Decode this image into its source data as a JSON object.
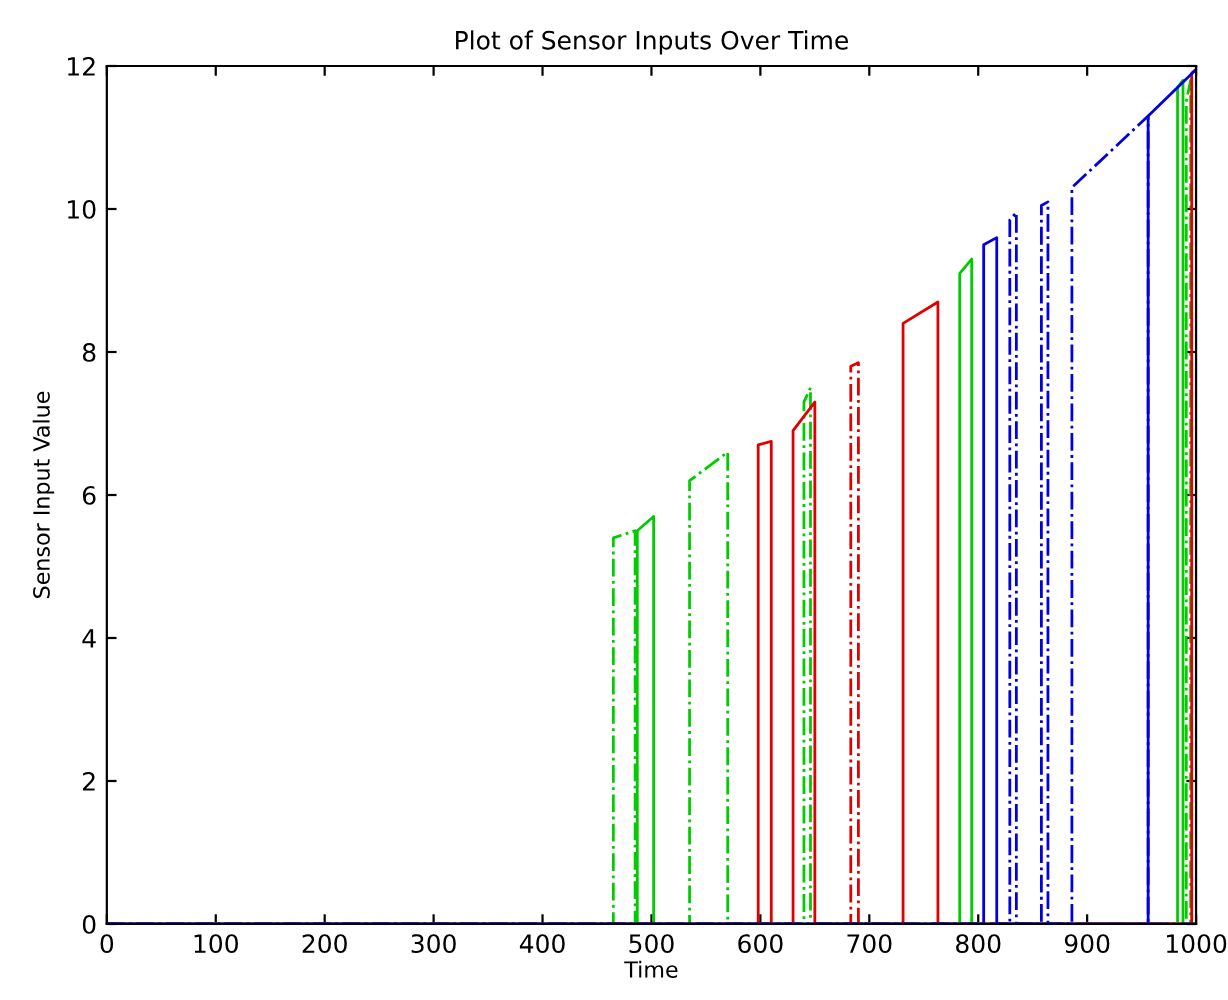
{
  "chart_data": {
    "type": "line",
    "title": "Plot of Sensor Inputs Over Time",
    "xlabel": "Time",
    "ylabel": "Sensor Input Value",
    "xlim": [
      0,
      1000
    ],
    "ylim": [
      0,
      12
    ],
    "xticks": [
      0,
      100,
      200,
      300,
      400,
      500,
      600,
      700,
      800,
      900,
      1000
    ],
    "yticks": [
      0,
      2,
      4,
      6,
      8,
      10,
      12
    ],
    "marker": "none",
    "series": [
      {
        "color": "#00cc00",
        "line_style": "dashdot",
        "x": [
          0,
          465,
          465,
          485,
          485,
          535,
          535,
          570,
          570,
          640,
          640,
          646,
          646,
          991,
          991,
          995,
          995,
          1000
        ],
        "values": [
          0,
          0,
          5.4,
          5.5,
          0,
          0,
          6.2,
          6.6,
          0,
          0,
          7.3,
          7.5,
          0,
          0,
          11.5,
          11.8,
          0,
          0
        ]
      },
      {
        "color": "#00cc00",
        "line_style": "solid",
        "x": [
          0,
          487,
          487,
          502,
          502,
          783,
          783,
          794,
          794,
          983,
          983,
          988,
          988,
          1000
        ],
        "values": [
          0,
          0,
          5.5,
          5.7,
          0,
          0,
          9.1,
          9.3,
          0,
          0,
          11.7,
          11.8,
          0,
          0
        ]
      },
      {
        "color": "#e00000",
        "line_style": "solid",
        "x": [
          0,
          598,
          598,
          610,
          610,
          630,
          630,
          650,
          650,
          731,
          731,
          763,
          763,
          996,
          996,
          1000
        ],
        "values": [
          0,
          0,
          6.7,
          6.75,
          0,
          0,
          6.9,
          7.3,
          0,
          0,
          8.4,
          8.7,
          0,
          0,
          11.9,
          11.95
        ]
      },
      {
        "color": "#e00000",
        "line_style": "dashdot",
        "x": [
          0,
          683,
          683,
          690,
          690,
          1000
        ],
        "values": [
          0,
          0,
          7.8,
          7.85,
          0,
          0
        ]
      },
      {
        "color": "#0000e0",
        "line_style": "solid",
        "x": [
          0,
          805,
          805,
          817,
          817,
          956,
          956,
          1000
        ],
        "values": [
          0,
          0,
          9.5,
          9.6,
          0,
          0,
          11.3,
          11.95
        ]
      },
      {
        "color": "#0000e0",
        "line_style": "dashdot",
        "x": [
          0,
          829,
          829,
          835,
          835,
          858,
          858,
          864,
          864,
          886,
          886,
          956,
          956,
          1000
        ],
        "values": [
          0,
          0,
          9.85,
          9.95,
          0,
          0,
          10.05,
          10.1,
          0,
          0,
          10.3,
          11.3,
          0,
          0
        ]
      }
    ]
  }
}
